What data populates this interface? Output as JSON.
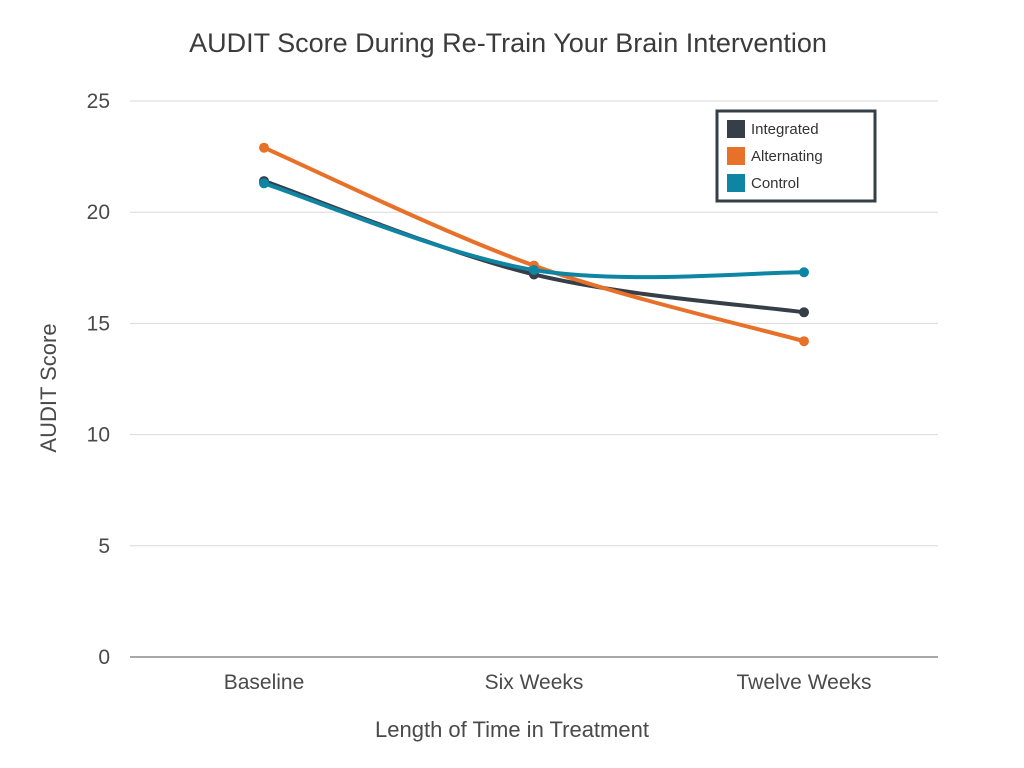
{
  "chart_data": {
    "type": "line",
    "title": "AUDIT Score During Re-Train Your Brain Intervention",
    "xlabel": "Length of Time in Treatment",
    "ylabel": "AUDIT Score",
    "categories": [
      "Baseline",
      "Six Weeks",
      "Twelve Weeks"
    ],
    "ylim": [
      0,
      25
    ],
    "yticks": [
      "0",
      "5",
      "10",
      "15",
      "20",
      "25"
    ],
    "grid": true,
    "legend_position": "top-right",
    "series": [
      {
        "name": "Integrated",
        "color": "#363f47",
        "values": [
          21.4,
          17.2,
          15.5
        ]
      },
      {
        "name": "Alternating",
        "color": "#e8712a",
        "values": [
          22.9,
          17.6,
          14.2
        ]
      },
      {
        "name": "Control",
        "color": "#0f85a4",
        "values": [
          21.3,
          17.4,
          17.3
        ]
      }
    ]
  }
}
